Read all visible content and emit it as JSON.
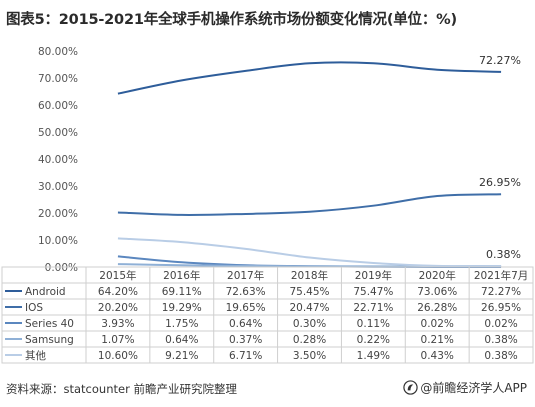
{
  "title": "图表5：2015-2021年全球手机操作系统市场份额变化情况(单位：%)",
  "source": "资料来源：statcounter 前瞻产业研究院整理",
  "brand": "@前瞻经济学人APP",
  "chart_data": {
    "type": "line",
    "categories": [
      "2015年",
      "2016年",
      "2017年",
      "2018年",
      "2019年",
      "2020年",
      "2021年7月"
    ],
    "ylim": [
      0,
      80
    ],
    "y_ticks": [
      "0.00%",
      "10.00%",
      "20.00%",
      "30.00%",
      "40.00%",
      "50.00%",
      "60.00%",
      "70.00%",
      "80.00%"
    ],
    "grid": false,
    "legend": "data-table-left",
    "series": [
      {
        "name": "Android",
        "values": [
          64.2,
          69.11,
          72.63,
          75.45,
          75.47,
          73.06,
          72.27
        ],
        "labels": [
          "64.20%",
          "69.11%",
          "72.63%",
          "75.45%",
          "75.47%",
          "73.06%",
          "72.27%"
        ],
        "color": "#2e5d9a"
      },
      {
        "name": "IOS",
        "values": [
          20.2,
          19.29,
          19.65,
          20.47,
          22.71,
          26.28,
          26.95
        ],
        "labels": [
          "20.20%",
          "19.29%",
          "19.65%",
          "20.47%",
          "22.71%",
          "26.28%",
          "26.95%"
        ],
        "color": "#3f6ea8"
      },
      {
        "name": "Series 40",
        "values": [
          3.93,
          1.75,
          0.64,
          0.3,
          0.11,
          0.02,
          0.02
        ],
        "labels": [
          "3.93%",
          "1.75%",
          "0.64%",
          "0.30%",
          "0.11%",
          "0.02%",
          "0.02%"
        ],
        "color": "#5b87bf"
      },
      {
        "name": "Samsung",
        "values": [
          1.07,
          0.64,
          0.37,
          0.28,
          0.22,
          0.21,
          0.38
        ],
        "labels": [
          "1.07%",
          "0.64%",
          "0.37%",
          "0.28%",
          "0.22%",
          "0.21%",
          "0.38%"
        ],
        "color": "#8fb0d6"
      },
      {
        "name": "其他",
        "values": [
          10.6,
          9.21,
          6.71,
          3.5,
          1.49,
          0.43,
          0.38
        ],
        "labels": [
          "10.60%",
          "9.21%",
          "6.71%",
          "3.50%",
          "1.49%",
          "0.43%",
          "0.38%"
        ],
        "color": "#b9cde6"
      }
    ],
    "annotations": [
      {
        "text": "72.27%",
        "series": "Android"
      },
      {
        "text": "26.95%",
        "series": "IOS"
      },
      {
        "text": "0.38%",
        "series": "Samsung"
      }
    ]
  }
}
